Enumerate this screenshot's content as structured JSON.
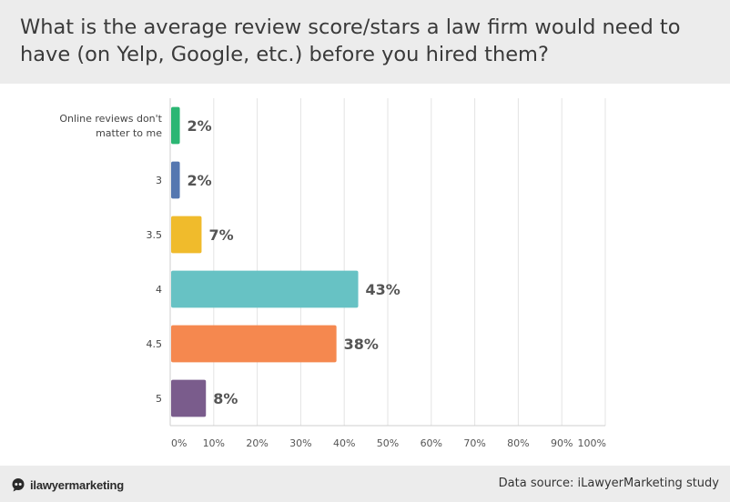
{
  "header": {
    "title": "What is the average review score/stars a law firm would need to have (on Yelp, Google, etc.) before you hired them?"
  },
  "chart_data": {
    "type": "bar",
    "orientation": "horizontal",
    "title": "What is the average review score/stars a law firm would need to have (on Yelp, Google, etc.) before you hired them?",
    "categories": [
      [
        "Online reviews don't",
        "matter to me"
      ],
      [
        "3"
      ],
      [
        "3.5"
      ],
      [
        "4"
      ],
      [
        "4.5"
      ],
      [
        "5"
      ]
    ],
    "values": [
      2,
      2,
      7,
      43,
      38,
      8
    ],
    "value_labels": [
      "2%",
      "2%",
      "7%",
      "43%",
      "38%",
      "8%"
    ],
    "bar_colors": [
      "#2bb673",
      "#5577b0",
      "#f0bb2c",
      "#67c2c4",
      "#f5884f",
      "#7a5c8c"
    ],
    "xlim": [
      0,
      100
    ],
    "xticks": [
      0,
      10,
      20,
      30,
      40,
      50,
      60,
      70,
      80,
      90,
      100
    ],
    "xtick_labels": [
      "0%",
      "10%",
      "20%",
      "30%",
      "40%",
      "50%",
      "60%",
      "70%",
      "80%",
      "90%",
      "100%"
    ],
    "grid": true,
    "legend": "none"
  },
  "footer": {
    "brand": "ilawyermarketing",
    "brand_icon": "quote-bubble-icon",
    "source_label": "Data source: iLawyerMarketing study"
  }
}
